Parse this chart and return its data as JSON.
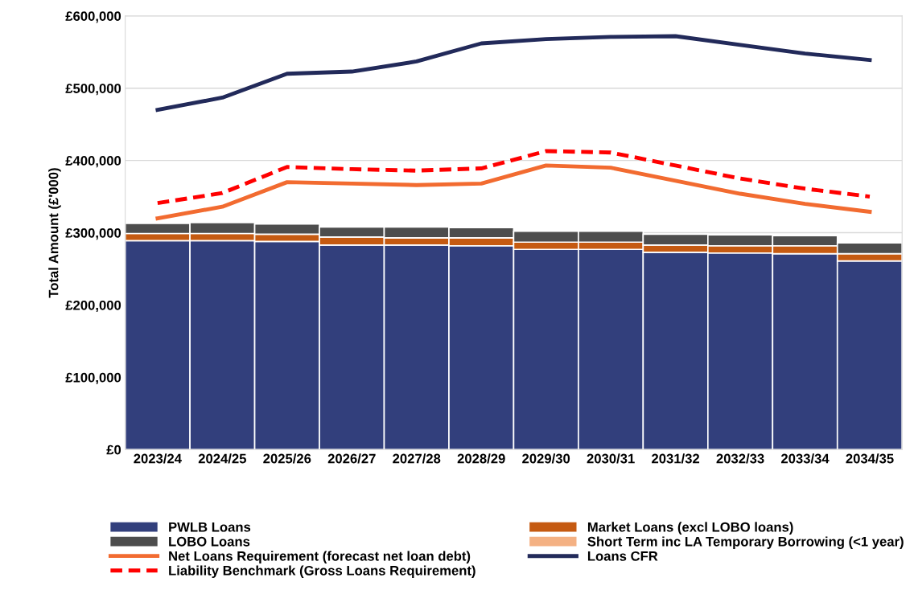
{
  "chart_data": {
    "type": "bar",
    "stacked": true,
    "ylabel": "Total Amount (£'000)",
    "categories": [
      "2023/24",
      "2024/25",
      "2025/26",
      "2026/27",
      "2027/28",
      "2028/29",
      "2029/30",
      "2030/31",
      "2031/32",
      "2032/33",
      "2033/34",
      "2034/35"
    ],
    "ylim": [
      0,
      600000
    ],
    "yticks": [
      {
        "value": 0,
        "label": "£0"
      },
      {
        "value": 100000,
        "label": "£100,000"
      },
      {
        "value": 200000,
        "label": "£200,000"
      },
      {
        "value": 300000,
        "label": "£300,000"
      },
      {
        "value": 400000,
        "label": "£400,000"
      },
      {
        "value": 500000,
        "label": "£500,000"
      },
      {
        "value": 600000,
        "label": "£600,000"
      }
    ],
    "grid": "y",
    "legend": "bottom",
    "series": [
      {
        "name": "PWLB Loans",
        "type": "bar",
        "color": "#323f7c",
        "values": [
          289000,
          289000,
          288000,
          283000,
          283000,
          282000,
          277000,
          277000,
          273000,
          272000,
          271000,
          261000
        ]
      },
      {
        "name": "Market Loans (excl LOBO loans)",
        "type": "bar",
        "color": "#c55a11",
        "values": [
          10000,
          10000,
          10000,
          11000,
          10000,
          11000,
          10000,
          10000,
          10000,
          10000,
          11000,
          10000
        ]
      },
      {
        "name": "LOBO Loans",
        "type": "bar",
        "color": "#4d4d4d",
        "values": [
          14000,
          15000,
          14000,
          14000,
          15000,
          14000,
          15000,
          15000,
          15000,
          15000,
          14000,
          15000
        ]
      },
      {
        "name": "Short Term inc LA Temporary Borrowing (<1 year)",
        "type": "bar",
        "color": "#f4b183",
        "values": [
          0,
          0,
          0,
          0,
          0,
          0,
          0,
          0,
          0,
          0,
          0,
          0
        ]
      },
      {
        "name": "Net Loans Requirement (forecast net loan debt)",
        "type": "line",
        "line_style": "solid",
        "color": "#f26b30",
        "values": [
          320000,
          336000,
          370000,
          368000,
          366000,
          368000,
          393000,
          390000,
          372000,
          354000,
          340000,
          329000
        ]
      },
      {
        "name": "Loans CFR",
        "type": "line",
        "line_style": "solid",
        "color": "#222a5a",
        "values": [
          470000,
          487000,
          520000,
          523000,
          537000,
          562000,
          568000,
          571000,
          572000,
          560000,
          548000,
          539000
        ]
      },
      {
        "name": "Liability Benchmark (Gross Loans Requirement)",
        "type": "line",
        "line_style": "dashed",
        "color": "#ff0000",
        "values": [
          341000,
          355000,
          391000,
          388000,
          386000,
          389000,
          413000,
          411000,
          393000,
          375000,
          361000,
          350000
        ]
      }
    ]
  }
}
